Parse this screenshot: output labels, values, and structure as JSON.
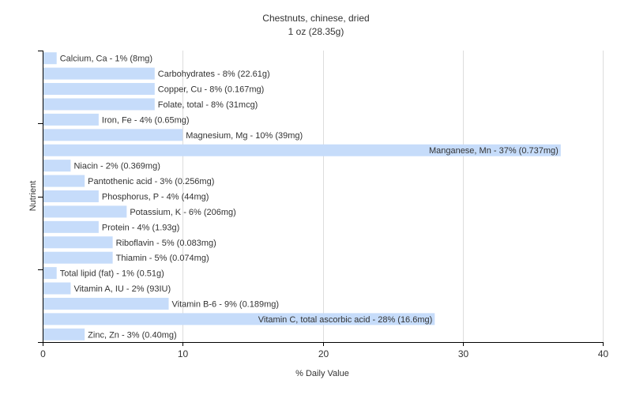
{
  "chart_data": {
    "type": "bar",
    "orientation": "horizontal",
    "title": "Chestnuts, chinese, dried",
    "subtitle": "1 oz (28.35g)",
    "xlabel": "% Daily Value",
    "ylabel": "Nutrient",
    "xlim": [
      0,
      40
    ],
    "xticks": [
      "0",
      "10",
      "20",
      "30",
      "40"
    ],
    "grid": "vertical",
    "bar_color": "#c6dcfa",
    "categories": [
      "Calcium, Ca - 1% (8mg)",
      "Carbohydrates - 8% (22.61g)",
      "Copper, Cu - 8% (0.167mg)",
      "Folate, total - 8% (31mcg)",
      "Iron, Fe - 4% (0.65mg)",
      "Magnesium, Mg - 10% (39mg)",
      "Manganese, Mn - 37% (0.737mg)",
      "Niacin - 2% (0.369mg)",
      "Pantothenic acid - 3% (0.256mg)",
      "Phosphorus, P - 4% (44mg)",
      "Potassium, K - 6% (206mg)",
      "Protein - 4% (1.93g)",
      "Riboflavin - 5% (0.083mg)",
      "Thiamin - 5% (0.074mg)",
      "Total lipid (fat) - 1% (0.51g)",
      "Vitamin A, IU - 2% (93IU)",
      "Vitamin B-6 - 9% (0.189mg)",
      "Vitamin C, total ascorbic acid - 28% (16.6mg)",
      "Zinc, Zn - 3% (0.40mg)"
    ],
    "values": [
      1,
      8,
      8,
      8,
      4,
      10,
      37,
      2,
      3,
      4,
      6,
      4,
      5,
      5,
      1,
      2,
      9,
      28,
      3
    ]
  }
}
